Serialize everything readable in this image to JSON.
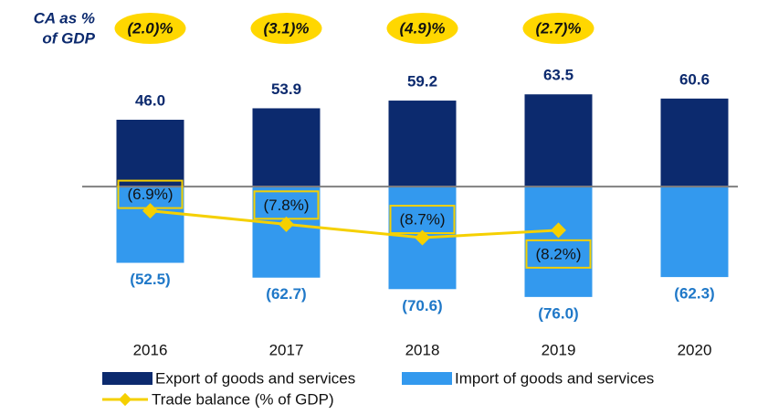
{
  "chart_data": {
    "type": "bar",
    "ca_title": [
      "CA as %",
      "of GDP"
    ],
    "categories": [
      "2016",
      "2017",
      "2018",
      "2019",
      "2020"
    ],
    "series": [
      {
        "name": "Export of goods and services",
        "color": "#0c2a6e",
        "label_color": "#0c2a6e",
        "values": [
          46.0,
          53.9,
          59.2,
          63.5,
          60.6
        ],
        "value_labels": [
          "46.0",
          "53.9",
          "59.2",
          "63.5",
          "60.6"
        ]
      },
      {
        "name": "Import of goods and services",
        "color": "#3399ee",
        "label_color": "#1f78c8",
        "values": [
          -52.5,
          -62.7,
          -70.6,
          -76.0,
          -62.3
        ],
        "value_labels": [
          "(52.5)",
          "(62.7)",
          "(70.6)",
          "(76.0)",
          "(62.3)"
        ]
      },
      {
        "name": "Trade balance (% of GDP)",
        "type": "line",
        "axis": "y2",
        "color": "#f5d000",
        "values": [
          -6.9,
          -7.8,
          -8.7,
          -8.2,
          null
        ],
        "value_labels": [
          "(6.9%)",
          "(7.8%)",
          "(8.7%)",
          "(8.2%)",
          null
        ]
      }
    ],
    "ca_values": [
      -2.0,
      -3.1,
      -4.9,
      -2.7,
      null
    ],
    "ca_value_labels": [
      "(2.0)%",
      "(3.1)%",
      "(4.9)%",
      "(2.7)%",
      null
    ],
    "ca_color": "#ffd700",
    "ylim": [
      -100,
      80
    ],
    "y2lim": [
      -15,
      2.5
    ],
    "zero_line_color": "#808080"
  }
}
